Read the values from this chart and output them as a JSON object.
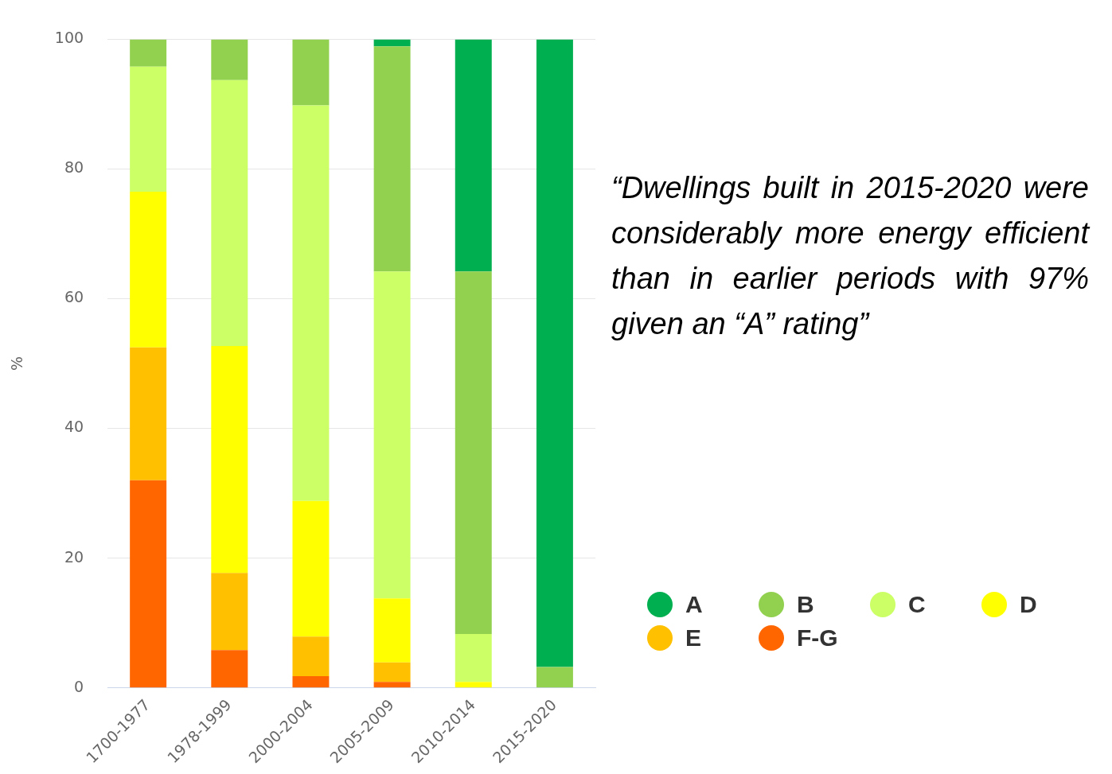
{
  "chart_data": {
    "type": "bar",
    "stacked": true,
    "ylabel": "%",
    "categories": [
      "1700-1977",
      "1978-1999",
      "2000-2004",
      "2005-2009",
      "2010-2014",
      "2015-2020"
    ],
    "series": [
      {
        "name": "F-G",
        "color": "#ff6600",
        "values": [
          32,
          5.8,
          1.8,
          0.9,
          0,
          0
        ]
      },
      {
        "name": "E",
        "color": "#ffc000",
        "values": [
          20.5,
          11.9,
          6.1,
          3,
          0,
          0
        ]
      },
      {
        "name": "D",
        "color": "#ffff00",
        "values": [
          24,
          35,
          20.9,
          9.9,
          0.9,
          0
        ]
      },
      {
        "name": "C",
        "color": "#ccff66",
        "values": [
          19.3,
          41,
          61,
          50.4,
          7.4,
          0
        ]
      },
      {
        "name": "B",
        "color": "#92d050",
        "values": [
          4.2,
          6.3,
          10.2,
          34.7,
          55.9,
          3.2
        ]
      },
      {
        "name": "A",
        "color": "#00b050",
        "values": [
          0,
          0,
          0,
          1.1,
          35.8,
          96.8
        ]
      }
    ],
    "ylim": [
      0,
      100
    ],
    "yticks": [
      0,
      20,
      40,
      60,
      80,
      100
    ],
    "grid": "y",
    "legend": "right",
    "annotations": [
      "“Dwellings built in 2015-2020 were considerably more energy efficient than in earlier periods with 97% given an “A” rating”"
    ]
  }
}
